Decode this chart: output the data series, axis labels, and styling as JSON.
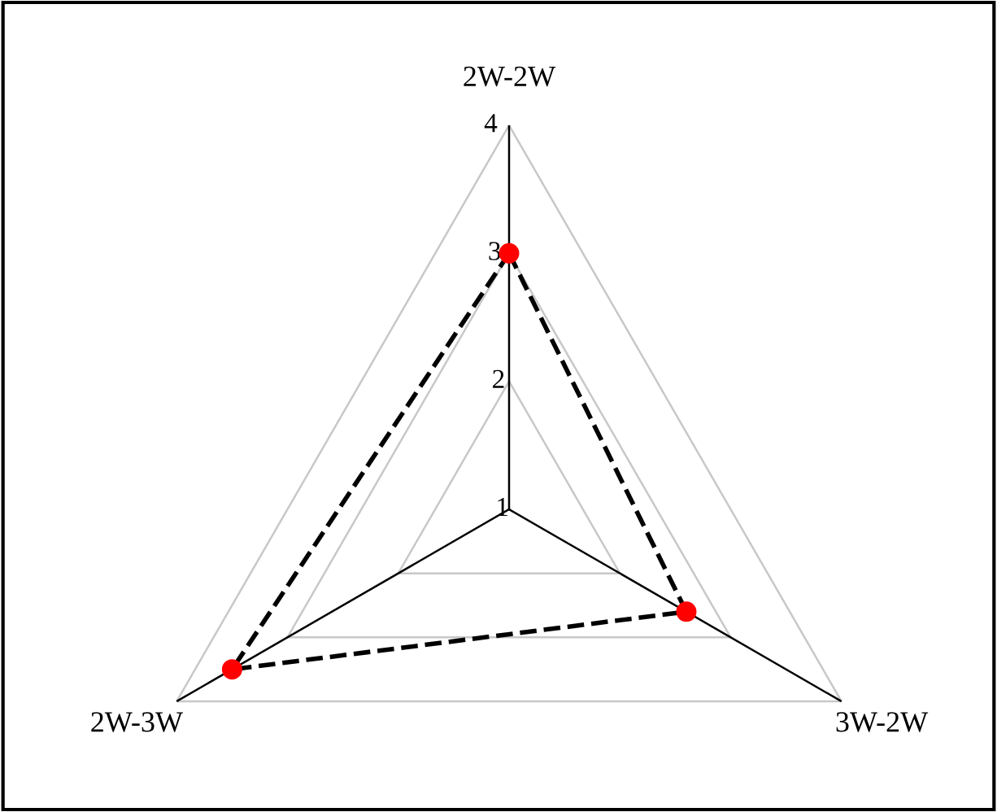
{
  "chart_data": {
    "type": "radar",
    "categories": [
      "2W-2W",
      "3W-2W",
      "2W-3W"
    ],
    "series": [
      {
        "color": "#000000",
        "values": [
          3,
          2.6,
          3.5
        ],
        "line_style": "dashed",
        "marker": "circle",
        "colors": [
          "#ff0000",
          "#ff0000",
          "#ff0000"
        ]
      }
    ],
    "ylim": [
      1,
      4
    ],
    "yticks": [
      1,
      2,
      3,
      4
    ],
    "grid": true,
    "legend": false
  }
}
